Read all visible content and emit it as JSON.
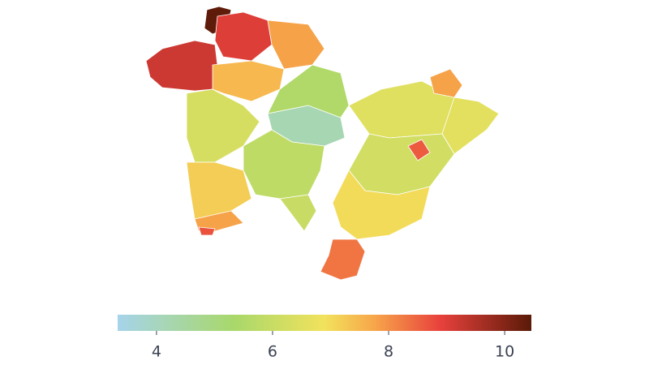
{
  "chart_data": {
    "type": "choropleth",
    "values": [
      9.2,
      10.4,
      9.0,
      7.8,
      6.3,
      7.5,
      4.2,
      5.5,
      7.2,
      5.8,
      7.8,
      6.0,
      6.5,
      6.6,
      6.2,
      7.0,
      8.3,
      7.8,
      8.6,
      8.7
    ],
    "colorscale": [
      [
        0,
        "#a6d4ea"
      ],
      [
        0.28,
        "#a8d86b"
      ],
      [
        0.5,
        "#f2e25c"
      ],
      [
        0.62,
        "#f7a64a"
      ],
      [
        0.78,
        "#e8413c"
      ],
      [
        1,
        "#5a1a08"
      ]
    ],
    "clim": [
      3.33,
      10.46
    ],
    "cticks": [
      4,
      6,
      8,
      10
    ]
  }
}
